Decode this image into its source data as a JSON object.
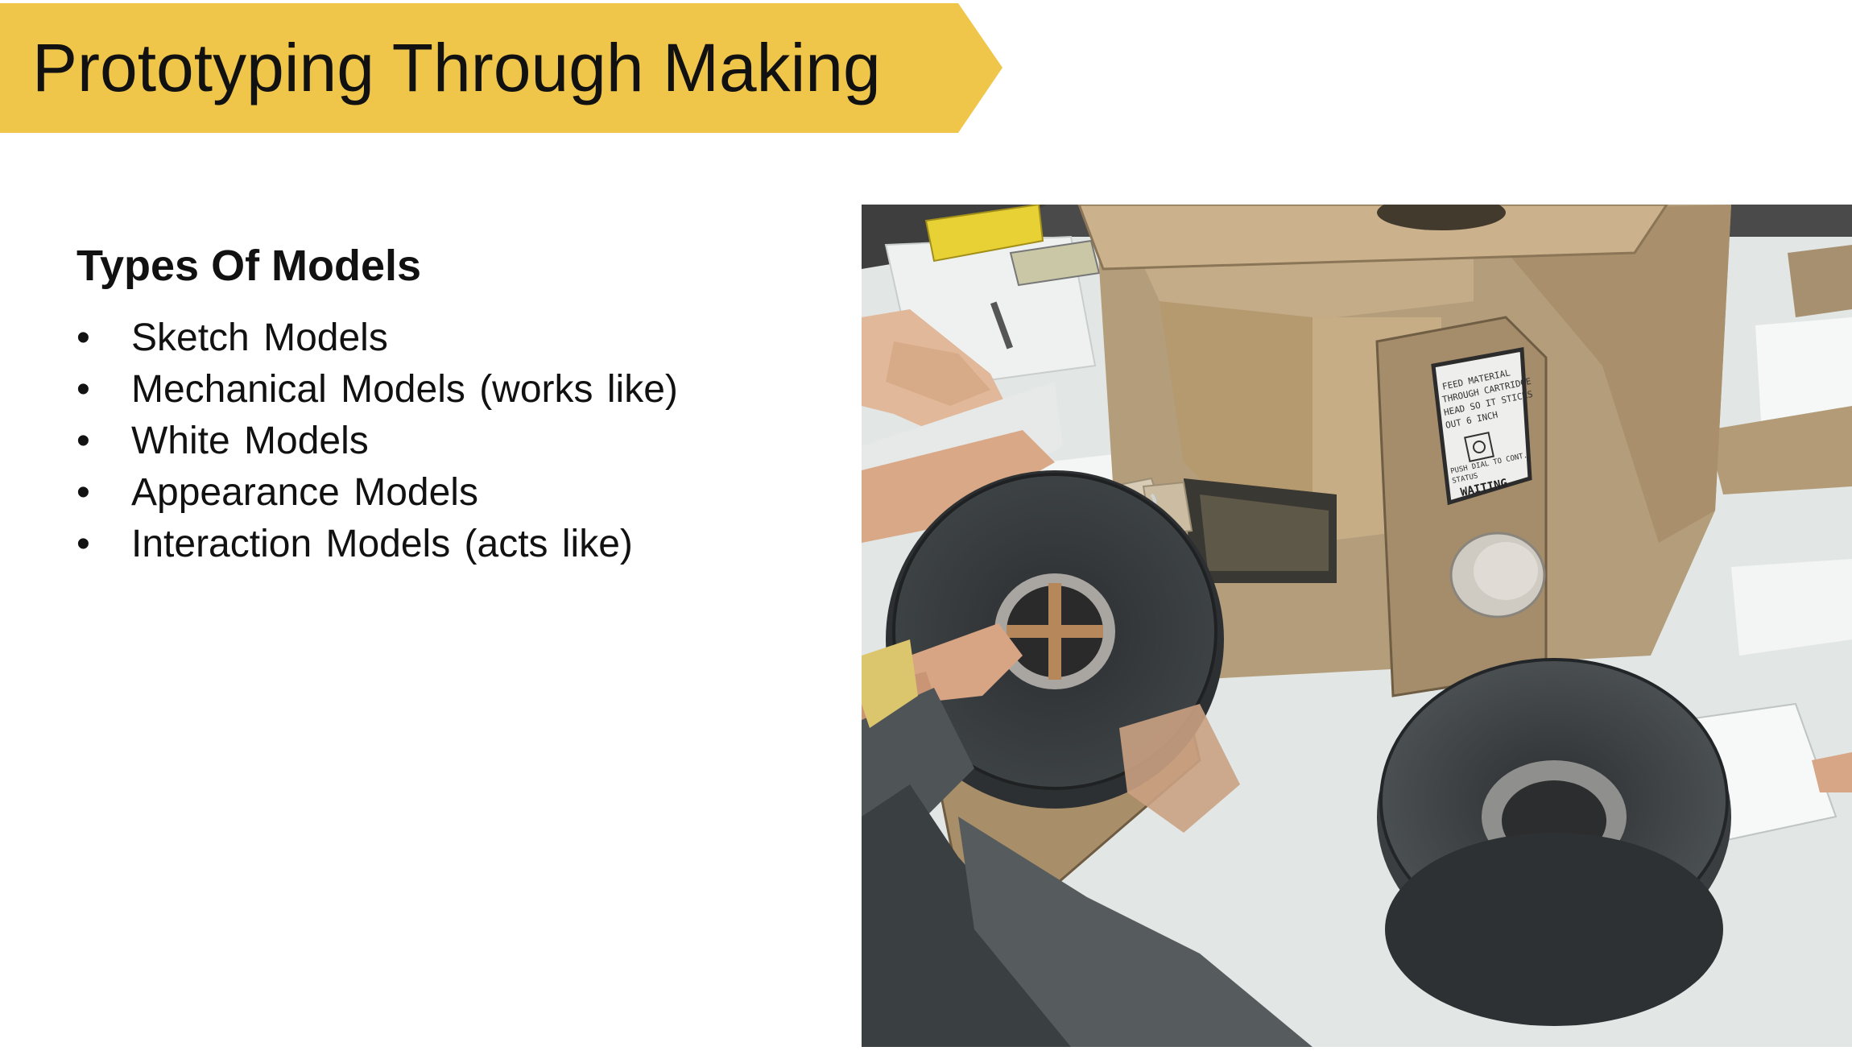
{
  "slide": {
    "title": "Prototyping Through Making",
    "banner_color": "#EFC649",
    "heading": "Types Of Models",
    "bullet_symbol": "•",
    "items": [
      {
        "label": "Sketch Models"
      },
      {
        "label": "Mechanical Models (works like)"
      },
      {
        "label": "White Models"
      },
      {
        "label": "Appearance Models"
      },
      {
        "label": "Interaction Models (acts like)"
      }
    ]
  },
  "photo": {
    "subject": "cardboard-3d-printer-prototype",
    "screen": {
      "text_lines": [
        "FEED MATERIAL",
        "THROUGH CARTRIDGE",
        "HEAD SO IT STICKS",
        "OUT 6 INCH"
      ],
      "footer_line": "PUSH DIAL TO CONT.",
      "status_label": "STATUS",
      "status_value": "WAITING"
    }
  }
}
